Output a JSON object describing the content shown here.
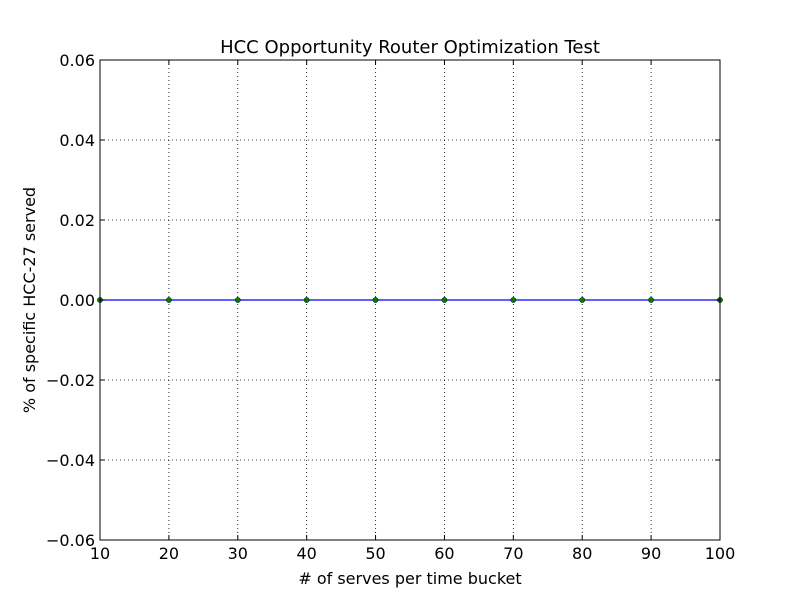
{
  "chart_data": {
    "type": "line",
    "title": "HCC Opportunity Router Optimization Test",
    "xlabel": "# of serves per time bucket",
    "ylabel": "% of specific HCC-27 served",
    "xlim": [
      10,
      100
    ],
    "ylim": [
      -0.06,
      0.06
    ],
    "x_ticks": [
      "10",
      "20",
      "30",
      "40",
      "50",
      "60",
      "70",
      "80",
      "90",
      "100"
    ],
    "y_ticks": [
      "0.06",
      "0.04",
      "0.02",
      "0.00",
      "−0.02",
      "−0.04",
      "−0.06"
    ],
    "grid": true,
    "series": [
      {
        "x": [
          10,
          20,
          30,
          40,
          50,
          60,
          70,
          80,
          90,
          100
        ],
        "y": [
          0,
          0,
          0,
          0,
          0,
          0,
          0,
          0,
          0,
          0
        ],
        "line_color": "#0000ff",
        "marker_color": "#008000"
      }
    ]
  }
}
